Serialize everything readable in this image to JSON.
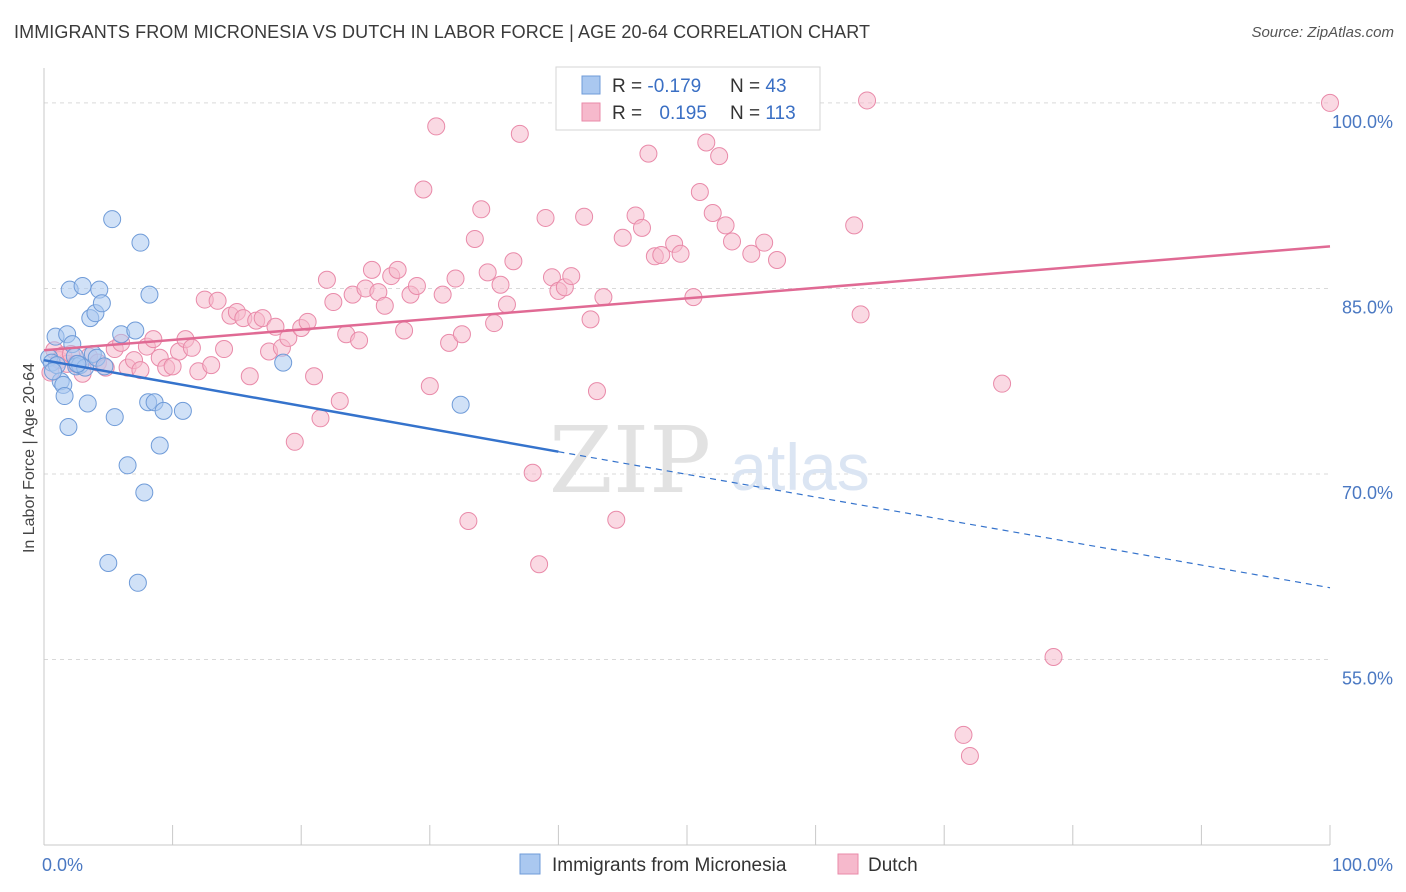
{
  "header": {
    "title": "IMMIGRANTS FROM MICRONESIA VS DUTCH IN LABOR FORCE | AGE 20-64 CORRELATION CHART",
    "source": "Source: ZipAtlas.com"
  },
  "watermark": {
    "zip": "ZIP",
    "atlas": "atlas"
  },
  "colors": {
    "series1_fill": "#aac8f0",
    "series1_stroke": "#6f9bd8",
    "series1_line": "#3573cc",
    "series2_fill": "#f6b9cc",
    "series2_stroke": "#e98aa9",
    "series2_line": "#e06a94",
    "tick_label": "#4a78c2",
    "grid": "#d9d9d9"
  },
  "legend_box": {
    "rows": [
      {
        "r_label": "R = ",
        "r_value": "-0.179",
        "n_label": "N = ",
        "n_value": "43"
      },
      {
        "r_label": "R = ",
        "r_value": "0.195",
        "n_label": "N = ",
        "n_value": "113"
      }
    ]
  },
  "chart_data": {
    "type": "scatter",
    "title": "IMMIGRANTS FROM MICRONESIA VS DUTCH IN LABOR FORCE | AGE 20-64 CORRELATION CHART",
    "xlabel": "",
    "ylabel": "In Labor Force | Age 20-64",
    "xlim": [
      0,
      100
    ],
    "ylim": [
      40,
      102.5
    ],
    "x_tick_labels": [
      {
        "value": 0,
        "label": "0.0%"
      },
      {
        "value": 100,
        "label": "100.0%"
      }
    ],
    "y_ticks": [
      {
        "value": 100,
        "label": "100.0%"
      },
      {
        "value": 85,
        "label": "85.0%"
      },
      {
        "value": 70,
        "label": "70.0%"
      },
      {
        "value": 55,
        "label": "55.0%"
      }
    ],
    "x_minor_ticks": [
      0,
      10,
      20,
      30,
      40,
      50,
      60,
      70,
      80,
      90,
      100
    ],
    "grid": true,
    "legend_position": "bottom-center",
    "series": [
      {
        "name": "Immigrants from Micronesia",
        "color": "#aac8f0",
        "points": [
          [
            0.4,
            79.4
          ],
          [
            0.6,
            79.0
          ],
          [
            0.9,
            81.1
          ],
          [
            1.0,
            78.8
          ],
          [
            1.3,
            77.5
          ],
          [
            1.5,
            77.2
          ],
          [
            1.6,
            76.3
          ],
          [
            1.8,
            81.3
          ],
          [
            1.9,
            73.8
          ],
          [
            2.0,
            84.9
          ],
          [
            2.2,
            80.5
          ],
          [
            2.4,
            79.5
          ],
          [
            2.5,
            78.7
          ],
          [
            2.8,
            78.8
          ],
          [
            3.0,
            85.2
          ],
          [
            3.2,
            78.6
          ],
          [
            3.4,
            75.7
          ],
          [
            3.6,
            82.6
          ],
          [
            3.8,
            79.7
          ],
          [
            4.0,
            83.0
          ],
          [
            4.1,
            79.4
          ],
          [
            4.3,
            84.9
          ],
          [
            4.5,
            83.8
          ],
          [
            4.7,
            78.7
          ],
          [
            5.0,
            62.8
          ],
          [
            5.3,
            90.6
          ],
          [
            5.5,
            74.6
          ],
          [
            6.0,
            81.3
          ],
          [
            6.5,
            70.7
          ],
          [
            7.1,
            81.6
          ],
          [
            7.3,
            61.2
          ],
          [
            7.5,
            88.7
          ],
          [
            7.8,
            68.5
          ],
          [
            8.1,
            75.8
          ],
          [
            8.2,
            84.5
          ],
          [
            8.6,
            75.8
          ],
          [
            9.0,
            72.3
          ],
          [
            9.3,
            75.1
          ],
          [
            10.8,
            75.1
          ],
          [
            18.6,
            79.0
          ],
          [
            32.4,
            75.6
          ],
          [
            0.7,
            78.3
          ],
          [
            2.6,
            78.9
          ]
        ]
      },
      {
        "name": "Dutch",
        "color": "#f6b9cc",
        "points": [
          [
            0.5,
            78.2
          ],
          [
            0.8,
            80.0
          ],
          [
            1.2,
            79.2
          ],
          [
            1.5,
            79.6
          ],
          [
            1.8,
            78.9
          ],
          [
            2.1,
            79.7
          ],
          [
            2.5,
            78.9
          ],
          [
            3.0,
            78.1
          ],
          [
            3.5,
            79.5
          ],
          [
            4.2,
            79.0
          ],
          [
            4.8,
            78.6
          ],
          [
            5.5,
            80.1
          ],
          [
            6.0,
            80.6
          ],
          [
            6.5,
            78.6
          ],
          [
            7.0,
            79.2
          ],
          [
            7.5,
            78.4
          ],
          [
            8.0,
            80.3
          ],
          [
            8.5,
            80.9
          ],
          [
            9.0,
            79.4
          ],
          [
            9.5,
            78.6
          ],
          [
            10.0,
            78.7
          ],
          [
            10.5,
            79.9
          ],
          [
            11.0,
            80.9
          ],
          [
            11.5,
            80.2
          ],
          [
            12.0,
            78.3
          ],
          [
            12.5,
            84.1
          ],
          [
            13.0,
            78.8
          ],
          [
            13.5,
            84.0
          ],
          [
            14.0,
            80.1
          ],
          [
            14.5,
            82.8
          ],
          [
            15.0,
            83.1
          ],
          [
            15.5,
            82.6
          ],
          [
            16.0,
            77.9
          ],
          [
            16.5,
            82.4
          ],
          [
            17.0,
            82.6
          ],
          [
            17.5,
            79.9
          ],
          [
            18.0,
            81.9
          ],
          [
            18.5,
            80.2
          ],
          [
            19.0,
            81.0
          ],
          [
            19.5,
            72.6
          ],
          [
            20.0,
            81.8
          ],
          [
            20.5,
            82.3
          ],
          [
            21.0,
            77.9
          ],
          [
            21.5,
            74.5
          ],
          [
            22.0,
            85.7
          ],
          [
            22.5,
            83.9
          ],
          [
            23.0,
            75.9
          ],
          [
            23.5,
            81.3
          ],
          [
            24.0,
            84.5
          ],
          [
            24.5,
            80.8
          ],
          [
            25.0,
            85.0
          ],
          [
            25.5,
            86.5
          ],
          [
            26.0,
            84.7
          ],
          [
            26.5,
            83.6
          ],
          [
            27.0,
            86.0
          ],
          [
            27.5,
            86.5
          ],
          [
            28.0,
            81.6
          ],
          [
            28.5,
            84.5
          ],
          [
            29.0,
            85.2
          ],
          [
            29.5,
            93.0
          ],
          [
            30.0,
            77.1
          ],
          [
            30.5,
            98.1
          ],
          [
            31.0,
            84.5
          ],
          [
            31.5,
            80.6
          ],
          [
            32.0,
            85.8
          ],
          [
            32.5,
            81.3
          ],
          [
            33.0,
            66.2
          ],
          [
            33.5,
            89.0
          ],
          [
            34.0,
            91.4
          ],
          [
            34.5,
            86.3
          ],
          [
            35.0,
            82.2
          ],
          [
            35.5,
            85.3
          ],
          [
            36.0,
            83.7
          ],
          [
            37.0,
            97.5
          ],
          [
            38.0,
            70.1
          ],
          [
            38.5,
            62.7
          ],
          [
            39.0,
            90.7
          ],
          [
            39.5,
            85.9
          ],
          [
            40.0,
            84.8
          ],
          [
            40.5,
            85.1
          ],
          [
            41.0,
            86.0
          ],
          [
            42.0,
            90.8
          ],
          [
            42.5,
            82.5
          ],
          [
            43.0,
            76.7
          ],
          [
            43.5,
            84.3
          ],
          [
            44.5,
            66.3
          ],
          [
            45.0,
            89.1
          ],
          [
            46.0,
            90.9
          ],
          [
            46.5,
            89.9
          ],
          [
            47.0,
            95.9
          ],
          [
            47.5,
            87.6
          ],
          [
            48.0,
            87.7
          ],
          [
            49.0,
            88.6
          ],
          [
            49.5,
            87.8
          ],
          [
            50.5,
            84.3
          ],
          [
            51.0,
            92.8
          ],
          [
            51.5,
            96.8
          ],
          [
            52.0,
            91.1
          ],
          [
            52.5,
            95.7
          ],
          [
            53.0,
            90.1
          ],
          [
            53.5,
            88.8
          ],
          [
            55.0,
            87.8
          ],
          [
            56.0,
            88.7
          ],
          [
            57.0,
            87.3
          ],
          [
            63.0,
            90.1
          ],
          [
            63.5,
            82.9
          ],
          [
            64.0,
            100.2
          ],
          [
            71.5,
            48.9
          ],
          [
            72.0,
            47.2
          ],
          [
            74.5,
            77.3
          ],
          [
            78.5,
            55.2
          ],
          [
            100.0,
            100.0
          ],
          [
            36.5,
            87.2
          ]
        ]
      }
    ],
    "trend_lines": [
      {
        "series": "Immigrants from Micronesia",
        "solid": [
          [
            0,
            79.2
          ],
          [
            40,
            71.8
          ]
        ],
        "dashed": [
          [
            40,
            71.8
          ],
          [
            100,
            60.8
          ]
        ]
      },
      {
        "series": "Dutch",
        "solid": [
          [
            0,
            80.0
          ],
          [
            100,
            88.4
          ]
        ]
      }
    ]
  }
}
